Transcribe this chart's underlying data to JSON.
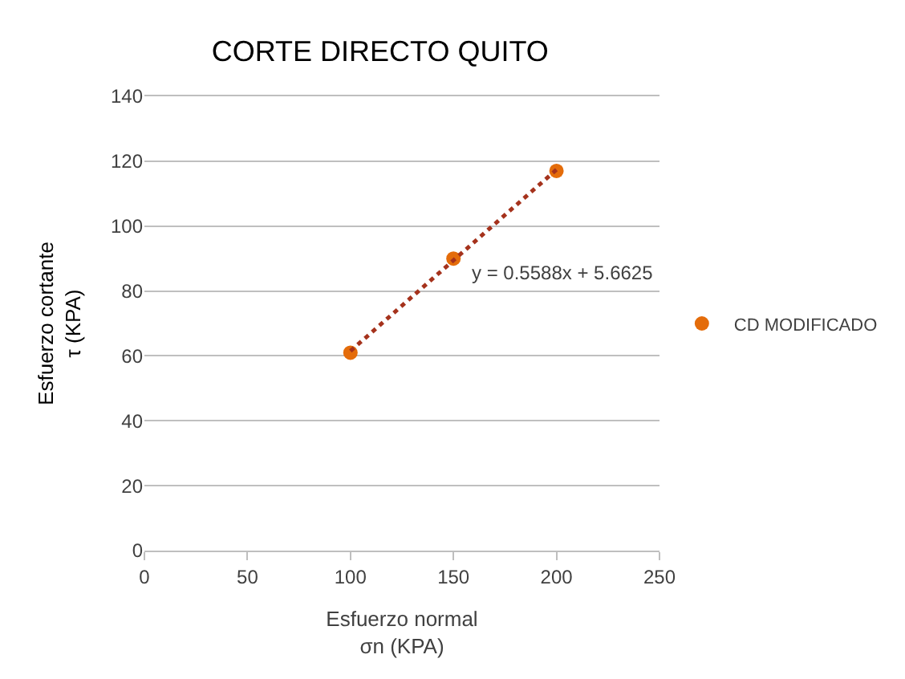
{
  "chart_data": {
    "type": "scatter",
    "title": "CORTE DIRECTO QUITO",
    "xlabel": "Esfuerzo normal\nσn (KPA)",
    "ylabel": "Esfuerzo cortante\nτ (KPA)",
    "x": [
      100,
      150,
      200
    ],
    "series": [
      {
        "name": "CD MODIFICADO",
        "color": "#e46c0a",
        "values": [
          61,
          90,
          117
        ],
        "marker": "circle"
      },
      {
        "type": "line",
        "color": "#a5321c",
        "x": [
          100,
          200
        ],
        "values": [
          61.5,
          117.4
        ],
        "line_style": "dotted",
        "marker": "none"
      }
    ],
    "annotations": [
      "y = 0.5588x + 5.6625"
    ],
    "xlim": [
      0,
      250
    ],
    "xticks": [
      0,
      50,
      100,
      150,
      200,
      250
    ],
    "ylim": [
      0,
      140
    ],
    "yticks": [
      0,
      20,
      40,
      60,
      80,
      100,
      120,
      140
    ],
    "grid": "y",
    "legend": "right"
  }
}
